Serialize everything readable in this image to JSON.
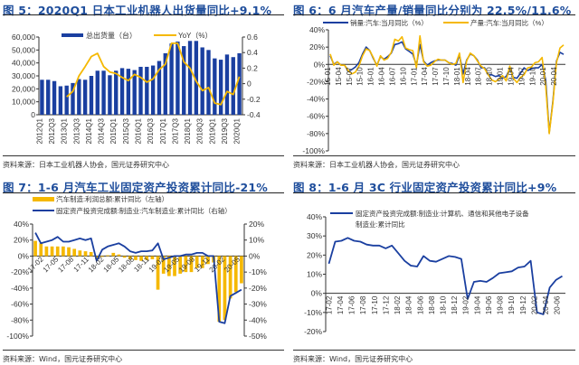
{
  "panels": [
    {
      "title": "图 5：2020Q1 日本工业机器人出货量同比+9.1%",
      "source": "资料来源：日本工业机器人协会，国元证券研究中心"
    },
    {
      "title": "图 6：6 月汽车产量/销量同比分别为 22.5%/11.6%",
      "source": "资料来源：日本工业机器人协会，国元证券研究中心"
    },
    {
      "title": "图 7：1-6 月汽车工业固定资产投资累计同比-21%",
      "source": "资料来源：Wind，国元证券研究中心"
    },
    {
      "title": "图 8：1-6 月 3C 行业固定资产投资累计同比+9%",
      "source": "资料来源：Wind，国元证券研究中心"
    }
  ],
  "colors": {
    "title": "#1f4e9c",
    "navy": "#1a3fa0",
    "gold": "#f5b800",
    "line_blue": "#1a3fa0"
  },
  "chart_data": [
    {
      "type": "bar+line",
      "legend": [
        "总出货量（台）",
        "YoY（%）"
      ],
      "legend_placement": "top",
      "categories": [
        "2012Q1",
        "2012Q2",
        "2012Q3",
        "2012Q4",
        "2013Q1",
        "2013Q2",
        "2013Q3",
        "2013Q4",
        "2014Q1",
        "2014Q2",
        "2014Q3",
        "2014Q4",
        "2015Q1",
        "2015Q2",
        "2015Q3",
        "2015Q4",
        "2016Q1",
        "2016Q2",
        "2016Q3",
        "2016Q4",
        "2017Q1",
        "2017Q2",
        "2017Q3",
        "2017Q4",
        "2018Q1",
        "2018Q2",
        "2018Q3",
        "2018Q4",
        "2019Q1",
        "2019Q2",
        "2019Q3",
        "2019Q4",
        "2020Q1"
      ],
      "tick_labels": [
        "2012Q1",
        "2012Q3",
        "2013Q1",
        "2013Q3",
        "2014Q1",
        "2014Q3",
        "2015Q1",
        "2015Q3",
        "2016Q1",
        "2016Q3",
        "2017Q1",
        "2017Q3",
        "2018Q1",
        "2018Q3",
        "2019Q1",
        "2019Q3",
        "2020Q1"
      ],
      "series": [
        {
          "name": "总出货量（台）",
          "axis": "left",
          "values": [
            27000,
            27000,
            26000,
            22000,
            22500,
            24500,
            27500,
            27000,
            30000,
            34000,
            34000,
            30500,
            34000,
            36000,
            35500,
            34500,
            37000,
            37000,
            38000,
            41500,
            47500,
            55000,
            56500,
            53000,
            57000,
            57000,
            52000,
            50000,
            43500,
            42500,
            46500,
            44500,
            47500
          ]
        },
        {
          "name": "YoY（%）",
          "axis": "right",
          "values": [
            null,
            null,
            null,
            null,
            -0.17,
            -0.1,
            0.1,
            0.22,
            0.35,
            0.39,
            0.22,
            0.15,
            0.13,
            0.08,
            0.04,
            0.12,
            0.08,
            0.02,
            0.06,
            0.18,
            0.25,
            0.52,
            0.52,
            0.28,
            0.2,
            0.03,
            -0.09,
            -0.05,
            -0.25,
            -0.27,
            -0.1,
            -0.14,
            0.091
          ]
        }
      ],
      "ylim": [
        0,
        60000
      ],
      "yticks": [
        "60,000",
        "50,000",
        "40,000",
        "30,000",
        "20,000",
        "10,000",
        "0"
      ],
      "y2lim": [
        -0.4,
        0.6
      ],
      "y2ticks": [
        "0.6",
        "0.4",
        "0.2",
        "0",
        "-0.2",
        "-0.4"
      ]
    },
    {
      "type": "line",
      "legend": [
        "销量:汽车:当月同比（%）",
        "产量:汽车:当月同比（%）"
      ],
      "legend_placement": "top",
      "tick_labels": [
        "15-01",
        "15-04",
        "15-07",
        "15-10",
        "16-01",
        "16-04",
        "16-07",
        "16-10",
        "17-01",
        "17-04",
        "17-07",
        "17-10",
        "18-01",
        "18-04",
        "18-07",
        "18-10",
        "19-01",
        "19-04",
        "19-07",
        "19-10",
        "20-01",
        "20-04"
      ],
      "ylim": [
        -100,
        40
      ],
      "yticks": [
        "40%",
        "20%",
        "0%",
        "-20%",
        "-40%",
        "-60%",
        "-80%",
        "-100%"
      ],
      "series": [
        {
          "name": "销量:汽车:当月同比（%）",
          "values": [
            10,
            0,
            3,
            -1,
            -1,
            -8,
            -6,
            -3,
            2,
            12,
            20,
            16,
            7,
            -1,
            9,
            6,
            9,
            13,
            23,
            24,
            26,
            18,
            15,
            12,
            -1,
            23,
            4,
            -1,
            2,
            4,
            5,
            5,
            5,
            2,
            1,
            -1,
            11,
            -11,
            5,
            12,
            10,
            5,
            -4,
            -4,
            -12,
            -12,
            -14,
            -13,
            -16,
            -14,
            -5,
            -15,
            -16,
            -10,
            -4,
            -7,
            -5,
            -4,
            -4,
            0,
            -18,
            -79,
            -43,
            4,
            14,
            11.6
          ]
        },
        {
          "name": "产量:汽车:当月同比（%）",
          "values": [
            12,
            -1,
            3,
            -1,
            -1,
            -7,
            -11,
            -9,
            -2,
            10,
            18,
            16,
            8,
            -2,
            10,
            5,
            7,
            14,
            29,
            27,
            32,
            19,
            17,
            16,
            -4,
            33,
            3,
            -2,
            -1,
            3,
            6,
            5,
            5,
            2,
            0,
            1,
            13,
            -21,
            4,
            13,
            10,
            4,
            -2,
            -5,
            -12,
            -18,
            -20,
            -17,
            -13,
            -19,
            -2,
            -16,
            -21,
            -15,
            -12,
            -4,
            -3,
            2,
            3,
            8,
            -25,
            -80,
            -45,
            2,
            19,
            22.5
          ]
        }
      ]
    },
    {
      "type": "bar+line",
      "legend": [
        "汽车制造:利润总额:累计同比（左轴）",
        "固定资产投资完成额:制造业:汽车制造业:累计同比（右轴）"
      ],
      "legend_placement": "top",
      "categories": [
        "17-02",
        "17-03",
        "17-04",
        "17-05",
        "17-06",
        "17-07",
        "17-08",
        "17-09",
        "17-10",
        "17-11",
        "17-12",
        "18-02",
        "18-03",
        "18-04",
        "18-05",
        "18-06",
        "18-07",
        "18-08",
        "18-09",
        "18-10",
        "18-11",
        "18-12",
        "19-02",
        "19-03",
        "19-04",
        "19-05",
        "19-06",
        "19-07",
        "19-08",
        "19-09",
        "19-10",
        "19-11",
        "19-12",
        "20-02",
        "20-03",
        "20-04",
        "20-05",
        "20-06"
      ],
      "tick_labels": [
        "17-02",
        "17-05",
        "17-08",
        "17-11",
        "18-02",
        "18-05",
        "18-08",
        "18-11",
        "19-02",
        "19-05",
        "19-08",
        "19-11",
        "20-02",
        "20-05"
      ],
      "ylim": [
        -100,
        40
      ],
      "yticks": [
        "40%",
        "20%",
        "0%",
        "-20%",
        "-40%",
        "-60%",
        "-80%",
        "-100%"
      ],
      "y2lim": [
        -50,
        20
      ],
      "y2ticks": [
        "20%",
        "10%",
        "0%",
        "-10%",
        "-20%",
        "-30%",
        "-40%",
        "-50%"
      ],
      "series": [
        {
          "name": "汽车制造:利润总额:累计同比（左轴）",
          "axis": "left",
          "values": [
            19,
            16,
            12,
            12,
            12,
            12,
            11,
            9,
            7,
            6,
            5,
            -4,
            -1,
            1,
            4,
            2,
            -2,
            -4,
            -5,
            -6,
            -5,
            -4,
            -42,
            -22,
            -25,
            -25,
            -22,
            -20,
            -20,
            -15,
            -15,
            -10,
            -8,
            -82,
            -80,
            -53,
            -45,
            -34
          ]
        },
        {
          "name": "固定资产投资完成额:制造业:汽车制造业:累计同比（右轴）",
          "axis": "right",
          "values": [
            14.6,
            8,
            9,
            10,
            12,
            9,
            9,
            10,
            11,
            10,
            11,
            -3,
            4,
            6,
            7,
            8,
            6,
            3,
            2,
            3,
            3,
            3.5,
            8,
            -2,
            -1,
            0,
            0,
            1,
            1,
            2,
            2,
            0,
            0,
            -41,
            -42,
            -25,
            -23,
            -21
          ]
        }
      ]
    },
    {
      "type": "line",
      "legend": [
        "固定资产投资完成额:制造业:计算机、通信和其他电子设备制造业:累计同比"
      ],
      "legend_placement": "top",
      "categories": [
        "17-02",
        "17-03",
        "17-04",
        "17-05",
        "17-06",
        "17-07",
        "17-08",
        "17-09",
        "17-10",
        "17-11",
        "17-12",
        "18-02",
        "18-03",
        "18-04",
        "18-05",
        "18-06",
        "18-07",
        "18-08",
        "18-09",
        "18-10",
        "18-11",
        "18-12",
        "19-02",
        "19-03",
        "19-04",
        "19-05",
        "19-06",
        "19-07",
        "19-08",
        "19-09",
        "19-10",
        "19-11",
        "19-12",
        "20-02",
        "20-03",
        "20-04",
        "20-05",
        "20-06"
      ],
      "tick_labels": [
        "17-02",
        "17-04",
        "17-06",
        "17-08",
        "17-10",
        "17-12",
        "18-02",
        "18-04",
        "18-06",
        "18-08",
        "18-10",
        "18-12",
        "19-02",
        "19-04",
        "19-06",
        "19-08",
        "19-10",
        "19-12",
        "20-02",
        "20-04",
        "20-06"
      ],
      "ylim": [
        -20,
        40
      ],
      "yticks": [
        "40%",
        "30%",
        "20%",
        "10%",
        "0%",
        "-10%",
        "-20%"
      ],
      "series": [
        {
          "name": "固定资产投资完成额:制造业:计算机、通信和其他电子设备制造业:累计同比",
          "values": [
            15.5,
            27,
            27.5,
            29,
            27.5,
            27,
            25.5,
            25,
            25,
            23.5,
            25,
            21,
            17,
            14.5,
            14,
            19.5,
            17,
            16.5,
            18,
            19.5,
            19,
            18,
            -3,
            6,
            6.5,
            6,
            8,
            10.5,
            11,
            11.5,
            13.5,
            14,
            17,
            -10,
            -11,
            3,
            7,
            9
          ]
        }
      ]
    }
  ]
}
